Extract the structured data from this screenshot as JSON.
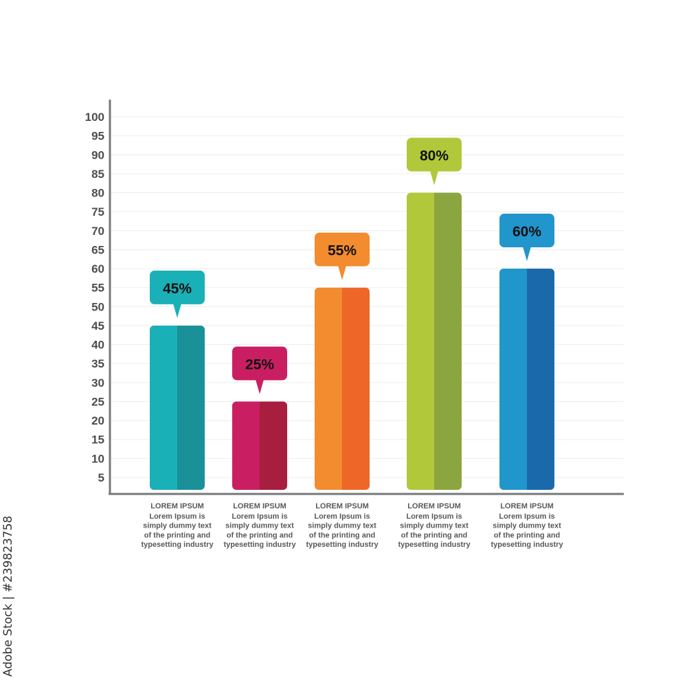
{
  "chart_data": {
    "type": "bar",
    "title": "",
    "xlabel": "",
    "ylabel": "",
    "ylim": [
      0,
      100
    ],
    "yticks": [
      5,
      10,
      15,
      20,
      25,
      30,
      35,
      40,
      45,
      50,
      55,
      60,
      65,
      70,
      75,
      80,
      85,
      90,
      95,
      100
    ],
    "grid": true,
    "values": [
      45,
      25,
      55,
      80,
      60
    ],
    "data_labels": [
      "45%",
      "25%",
      "55%",
      "80%",
      "60%"
    ],
    "categories": [
      {
        "title": "LOREM IPSUM",
        "lines": [
          "Lorem Ipsum is",
          "simply dummy text",
          "of the printing and",
          "typesetting industry"
        ]
      },
      {
        "title": "LOREM IPSUM",
        "lines": [
          "Lorem Ipsum is",
          "simply dummy text",
          "of the printing and",
          "typesetting industry"
        ]
      },
      {
        "title": "LOREM IPSUM",
        "lines": [
          "Lorem Ipsum is",
          "simply dummy text",
          "of the printing and",
          "typesetting industry"
        ]
      },
      {
        "title": "LOREM IPSUM",
        "lines": [
          "Lorem Ipsum is",
          "simply dummy text",
          "of the printing and",
          "typesetting industry"
        ]
      },
      {
        "title": "LOREM IPSUM",
        "lines": [
          "Lorem Ipsum is",
          "simply dummy text",
          "of the printing and",
          "typesetting industry"
        ]
      }
    ],
    "colors": [
      {
        "light": "#1ab0b8",
        "dark": "#1a9199"
      },
      {
        "light": "#c91f62",
        "dark": "#a81e3e"
      },
      {
        "light": "#f28c2e",
        "dark": "#ee6628"
      },
      {
        "light": "#b1c83b",
        "dark": "#8ba63e"
      },
      {
        "light": "#2196cc",
        "dark": "#1a6aab"
      }
    ]
  },
  "watermark": "Adobe Stock | #239823758"
}
